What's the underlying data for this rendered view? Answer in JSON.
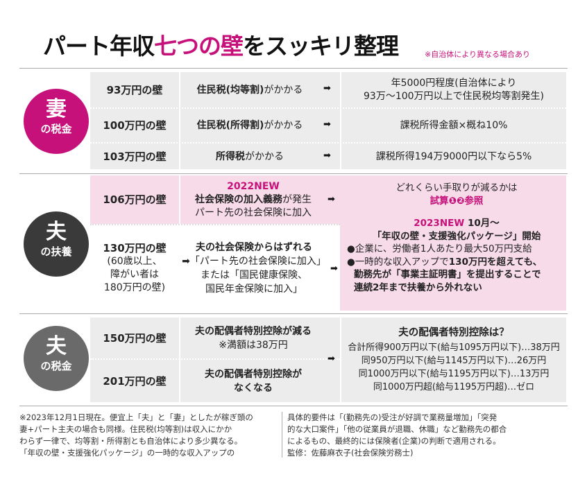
{
  "title": {
    "part1": "パート年収",
    "part2": "七つの壁",
    "part3": "をスッキリ整理"
  },
  "title_note": "※自治体により異なる場合あり",
  "sections": {
    "wife_tax": {
      "big": "妻",
      "small": "の税金"
    },
    "husband_dep": {
      "big": "夫",
      "small": "の扶養"
    },
    "husband_tax": {
      "big": "夫",
      "small": "の税金"
    }
  },
  "rows": {
    "r1": {
      "wall": "93万円の壁",
      "cond_b": "住民税(均等割)",
      "cond": "がかかる",
      "res1": "年5000円程度(自治体により",
      "res2": "93万〜100万円以上で住民税均等割発生)"
    },
    "r2": {
      "wall": "100万円の壁",
      "cond_b": "住民税(所得割)",
      "cond": "がかかる",
      "res1": "課税所得金額×概ね10%"
    },
    "r3": {
      "wall": "103万円の壁",
      "cond_b": "所得税",
      "cond": "がかかる",
      "res1": "課税所得194万9000円以下なら5%"
    },
    "r4": {
      "wall": "106万円の壁",
      "new": "2022NEW",
      "cond_b": "社会保険の加入義務",
      "cond": "が発生",
      "cond2": "パート先の社会保険に加入"
    },
    "r5": {
      "wall": "130万円の壁",
      "note1": "(60歳以上、",
      "note2": "障がい者は",
      "note3": "180万円の壁)",
      "c1": "夫の社会保険からはずれる",
      "c2": "「パート先の社会保険に加入」",
      "c3": "または「国民健康保険、",
      "c4": "国民年金保険に加入」"
    },
    "r45_res": {
      "l1": "どれくらい手取りが減るかは",
      "l2": "試算❶❷参照",
      "l3_new": "2023NEW",
      "l3": "10月〜",
      "l4": "「年収の壁・支援強化パッケージ」開始",
      "b1": "●企業に、労働者1人あたり最大50万円支給",
      "b2a": "●一時的な収入アップで",
      "b2b": "130万円を超えても、",
      "b3a": "勤務先が",
      "b3b": "「事業主証明書」",
      "b3c": "を提出することで",
      "b4": "連続2年まで扶養から外れない"
    },
    "r6": {
      "wall": "150万円の壁",
      "c1": "夫の配偶者特別控除が減る",
      "c2": "※満額は38万円"
    },
    "r7": {
      "wall": "201万円の壁",
      "c1": "夫の配偶者特別控除が",
      "c2": "なくなる"
    },
    "r67_res": {
      "t": "夫の配偶者特別控除は？",
      "l1": "合計所得900万円以下(給与1095万円以下)…38万円",
      "l2": "同950万円以下(給与1145万円以下)…26万円",
      "l3": "同1000万円以下(給与1195万円以下)…13万円",
      "l4": "同1000万円超(給与1195万円超)…ゼロ"
    }
  },
  "arrow": "➡",
  "footer": {
    "left": [
      "※2023年12月1日現在。便宜上「夫」と「妻」としたが稼ぎ頭の",
      "妻+パート主夫の場合も同様。住民税(均等割)は収入にかか",
      "わらず一律で、均等割・所得割とも自治体により多少異なる。",
      "「年収の壁・支援強化パッケージ」の一時的な収入アップの"
    ],
    "right": [
      "具体的要件は「(勤務先の)受注が好調で業務量増加」「突発",
      "的な大口案件」「他の従業員が退職、休職」など勤務先の都合",
      "によるもの、最終的には保険者(企業)の判断で適用される。",
      "監修：佐藤麻衣子(社会保険労務士)"
    ]
  },
  "colors": {
    "accent": "#c6117a",
    "dark": "#3a3a3a",
    "mid": "#6a6a6a",
    "row_gray": "#ececec",
    "row_pink": "#f7dbe8"
  }
}
